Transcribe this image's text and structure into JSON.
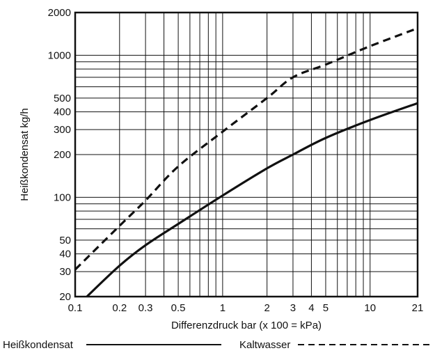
{
  "chart_data": {
    "type": "line",
    "xlabel": "Differenzdruck bar (x 100 = kPa)",
    "ylabel": "Heißkondensat kg/h",
    "x_scale": "log",
    "y_scale": "log",
    "xlim": [
      0.1,
      21
    ],
    "ylim": [
      20,
      2000
    ],
    "grid": true,
    "legend_position": "bottom",
    "x_tick_labels": [
      {
        "value": 0.1,
        "label": "0.1"
      },
      {
        "value": 0.2,
        "label": "0.2"
      },
      {
        "value": 0.3,
        "label": "0.3"
      },
      {
        "value": 0.5,
        "label": "0.5"
      },
      {
        "value": 1,
        "label": "1"
      },
      {
        "value": 2,
        "label": "2"
      },
      {
        "value": 3,
        "label": "3"
      },
      {
        "value": 4,
        "label": "4"
      },
      {
        "value": 5,
        "label": "5"
      },
      {
        "value": 10,
        "label": "10"
      },
      {
        "value": 21,
        "label": "21"
      }
    ],
    "y_tick_labels": [
      {
        "value": 20,
        "label": "20"
      },
      {
        "value": 30,
        "label": "30"
      },
      {
        "value": 40,
        "label": "40"
      },
      {
        "value": 50,
        "label": "50"
      },
      {
        "value": 100,
        "label": "100"
      },
      {
        "value": 200,
        "label": "200"
      },
      {
        "value": 300,
        "label": "300"
      },
      {
        "value": 400,
        "label": "400"
      },
      {
        "value": 500,
        "label": "500"
      },
      {
        "value": 1000,
        "label": "1000"
      },
      {
        "value": 2000,
        "label": "2000"
      }
    ],
    "x_gridlines": [
      0.1,
      0.2,
      0.3,
      0.4,
      0.5,
      0.6,
      0.7,
      0.8,
      0.9,
      1,
      2,
      3,
      4,
      5,
      6,
      7,
      8,
      9,
      10,
      21
    ],
    "y_gridlines": [
      20,
      30,
      40,
      50,
      60,
      70,
      80,
      90,
      100,
      200,
      300,
      400,
      500,
      600,
      700,
      800,
      900,
      1000,
      2000
    ],
    "series": [
      {
        "name": "Heißkondensat",
        "style": "solid",
        "x": [
          0.12,
          0.2,
          0.3,
          0.5,
          1,
          2,
          3,
          5,
          10,
          21
        ],
        "y": [
          20,
          33,
          46,
          65,
          103,
          160,
          200,
          262,
          350,
          460
        ]
      },
      {
        "name": "Kaltwasser",
        "style": "dashed",
        "x": [
          0.1,
          0.2,
          0.3,
          0.5,
          1,
          2,
          3,
          5,
          10,
          21
        ],
        "y": [
          31,
          63,
          95,
          165,
          290,
          500,
          700,
          860,
          1160,
          1550
        ]
      }
    ]
  }
}
